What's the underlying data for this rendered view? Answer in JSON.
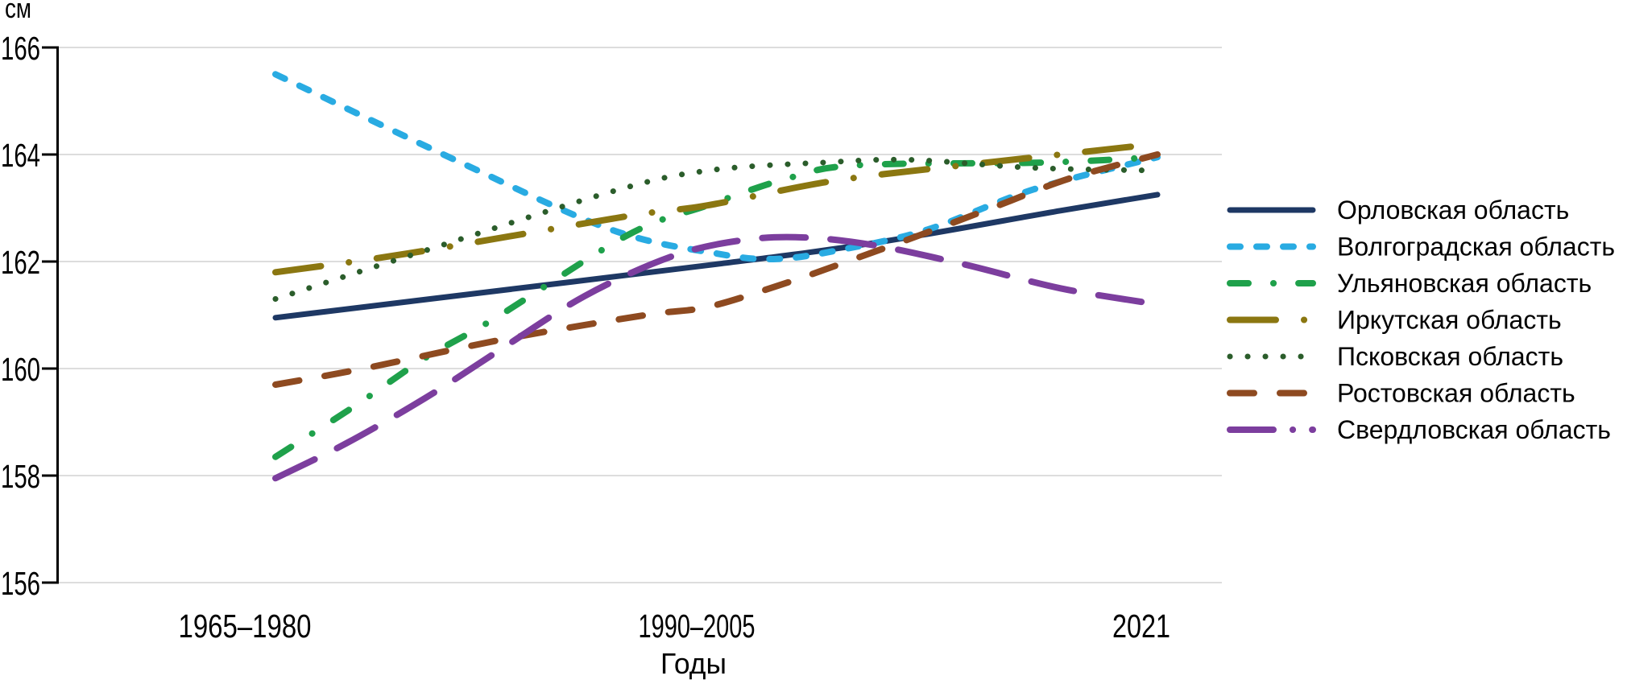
{
  "chart_data": {
    "type": "line",
    "unit": "см",
    "xlabel": "Годы",
    "categories": [
      "1965–1980",
      "1990–2005",
      "2021"
    ],
    "y_ticks": [
      166,
      164,
      162,
      160,
      158,
      156
    ],
    "ylim": [
      156,
      166
    ],
    "grid": true,
    "legend_position": "right",
    "grid_color": "#DDDDDD",
    "axis_color": "#000000",
    "series": [
      {
        "name": "Орловская область",
        "color": "#1E3864",
        "width": 7,
        "dash": null,
        "values": [
          161.0,
          162.0,
          163.2
        ],
        "shape": [
          [
            0,
            160.95
          ],
          [
            0.25,
            161.45
          ],
          [
            0.5,
            161.95
          ],
          [
            0.68,
            162.35
          ],
          [
            0.89,
            162.95
          ],
          [
            1,
            163.25
          ]
        ]
      },
      {
        "name": "Волгоградская область",
        "color": "#29ABE2",
        "width": 8,
        "dash": "13 20",
        "values": [
          165.5,
          162.1,
          163.9
        ],
        "shape": [
          [
            0,
            165.5
          ],
          [
            0.21,
            163.85
          ],
          [
            0.38,
            162.6
          ],
          [
            0.5,
            162.15
          ],
          [
            0.57,
            162.05
          ],
          [
            0.65,
            162.25
          ],
          [
            0.74,
            162.6
          ],
          [
            0.86,
            163.35
          ],
          [
            1,
            163.95
          ]
        ]
      },
      {
        "name": "Ульяновская область",
        "color": "#1FA14B",
        "width": 8,
        "dash": "23 31 0.1 31",
        "values": [
          158.4,
          163.1,
          163.9
        ],
        "shape": [
          [
            0,
            158.35
          ],
          [
            0.09,
            159.3
          ],
          [
            0.17,
            160.2
          ],
          [
            0.25,
            160.95
          ],
          [
            0.4,
            162.5
          ],
          [
            0.49,
            163.05
          ],
          [
            0.58,
            163.55
          ],
          [
            0.66,
            163.8
          ],
          [
            0.87,
            163.85
          ],
          [
            1,
            163.95
          ]
        ]
      },
      {
        "name": "Иркутская область",
        "color": "#8B7711",
        "width": 8,
        "dash": "57 35 0.1 35",
        "values": [
          161.8,
          163.1,
          164.2
        ],
        "shape": [
          [
            0,
            161.8
          ],
          [
            0.15,
            162.15
          ],
          [
            0.4,
            162.85
          ],
          [
            0.49,
            163.05
          ],
          [
            0.63,
            163.5
          ],
          [
            0.78,
            163.8
          ],
          [
            0.89,
            164.0
          ],
          [
            1,
            164.2
          ]
        ]
      },
      {
        "name": "Псковская область",
        "color": "#2B5D2B",
        "width": 7,
        "dash": "0.1 21.9",
        "values": [
          161.3,
          163.7,
          163.7
        ],
        "shape": [
          [
            0,
            161.3
          ],
          [
            0.15,
            162.1
          ],
          [
            0.38,
            163.3
          ],
          [
            0.49,
            163.7
          ],
          [
            0.62,
            163.85
          ],
          [
            0.72,
            163.9
          ],
          [
            0.86,
            163.75
          ],
          [
            1,
            163.7
          ]
        ]
      },
      {
        "name": "Ростовская область",
        "color": "#8E4A20",
        "width": 8,
        "dash": "30 32",
        "values": [
          159.7,
          161.2,
          164.0
        ],
        "shape": [
          [
            0,
            159.7
          ],
          [
            0.1,
            160.0
          ],
          [
            0.26,
            160.55
          ],
          [
            0.42,
            161.0
          ],
          [
            0.49,
            161.15
          ],
          [
            0.57,
            161.55
          ],
          [
            0.64,
            161.95
          ],
          [
            0.74,
            162.55
          ],
          [
            0.82,
            163.05
          ],
          [
            0.9,
            163.55
          ],
          [
            1,
            164.0
          ]
        ]
      },
      {
        "name": "Свердловская область",
        "color": "#7C3E9E",
        "width": 8,
        "dash": "54 31",
        "legend_dash": "54 24 0.1 24",
        "values": [
          158.0,
          162.3,
          161.2
        ],
        "shape": [
          [
            0,
            157.95
          ],
          [
            0.08,
            158.6
          ],
          [
            0.17,
            159.45
          ],
          [
            0.25,
            160.3
          ],
          [
            0.35,
            161.35
          ],
          [
            0.45,
            162.1
          ],
          [
            0.53,
            162.4
          ],
          [
            0.6,
            162.45
          ],
          [
            0.68,
            162.3
          ],
          [
            0.78,
            161.95
          ],
          [
            0.89,
            161.5
          ],
          [
            1,
            161.2
          ]
        ]
      }
    ]
  }
}
